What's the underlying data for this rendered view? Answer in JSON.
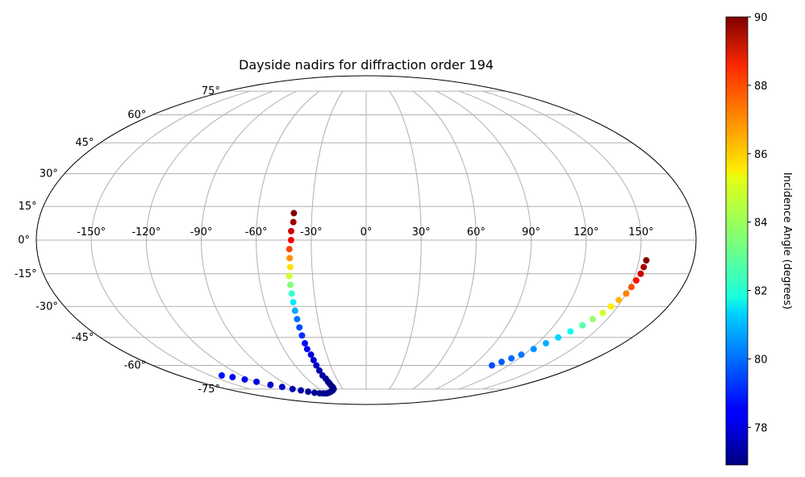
{
  "chart_data": {
    "type": "scatter",
    "projection": "mollweide",
    "title": "Dayside nadirs for diffraction order 194",
    "grid": true,
    "x_tick_labels": [
      "-150°",
      "-120°",
      "-90°",
      "-60°",
      "-30°",
      "0°",
      "30°",
      "60°",
      "90°",
      "120°",
      "150°"
    ],
    "x_ticks": [
      -150,
      -120,
      -90,
      -60,
      -30,
      0,
      30,
      60,
      90,
      120,
      150
    ],
    "y_tick_labels": [
      "-75°",
      "-60°",
      "-45°",
      "-30°",
      "-15°",
      "0°",
      "15°",
      "30°",
      "45°",
      "60°",
      "75°"
    ],
    "y_ticks": [
      -75,
      -60,
      -45,
      -30,
      -15,
      0,
      15,
      30,
      45,
      60,
      75
    ],
    "colorbar": {
      "label": "Incidence Angle (degrees)",
      "cmap": "jet",
      "range": [
        76.9,
        90
      ],
      "tick_values": [
        78,
        80,
        82,
        84,
        86,
        88,
        90
      ],
      "tick_labels": [
        "78",
        "80",
        "82",
        "84",
        "86",
        "88",
        "90"
      ]
    },
    "series": [
      {
        "lon": [
          -40,
          -40,
          -41,
          -41,
          -42,
          -42,
          -42,
          -43,
          -43,
          -43,
          -43,
          -43,
          -43,
          -43,
          -43,
          -43,
          -43,
          -42,
          -42,
          -42,
          -42,
          -42,
          -41,
          -41,
          -41,
          -41,
          -41,
          -41,
          -42,
          -45,
          -50,
          -55,
          -60,
          -65,
          -70,
          -76,
          -82,
          -88,
          -95,
          -102,
          -110,
          -118,
          -125,
          -132,
          -139
        ],
        "lat": [
          12,
          8,
          4,
          0,
          -4,
          -8,
          -12,
          -16,
          -20,
          -24,
          -28,
          -32,
          -36,
          -40,
          -44,
          -48,
          -51,
          -54,
          -57,
          -60,
          -63,
          -66,
          -68,
          -70,
          -71,
          -72,
          -73,
          -74,
          -75,
          -76,
          -77,
          -77.8,
          -78.3,
          -78.3,
          -78.2,
          -77.8,
          -77,
          -76,
          -75,
          -73.5,
          -72,
          -70,
          -68.5,
          -67,
          -66
        ],
        "incidence": [
          90,
          89.5,
          89,
          88.5,
          87.5,
          86.5,
          85.5,
          84.5,
          83.5,
          82.5,
          81.6,
          80.7,
          80,
          79.5,
          79.1,
          78.7,
          78.4,
          78.1,
          77.9,
          77.7,
          77.5,
          77.3,
          77.2,
          77.1,
          77,
          77,
          77,
          77,
          77,
          77,
          77,
          77,
          77,
          77.1,
          77.1,
          77.2,
          77.3,
          77.4,
          77.5,
          77.7,
          77.9,
          78.1,
          78.3,
          78.5,
          78.7
        ]
      },
      {
        "lon": [
          154,
          153.5,
          153,
          152,
          151,
          150,
          148,
          146,
          144,
          141,
          138,
          134,
          130,
          126,
          122,
          118,
          114,
          110,
          106
        ],
        "lat": [
          -9,
          -12,
          -15,
          -18,
          -21,
          -24,
          -27,
          -30,
          -33,
          -36,
          -39,
          -42,
          -45,
          -48,
          -51,
          -54,
          -56,
          -58,
          -60
        ],
        "incidence": [
          90,
          89.5,
          89,
          88.2,
          87.4,
          86.7,
          86,
          85.3,
          84.5,
          83.7,
          82.9,
          82,
          81.3,
          80.8,
          80.4,
          80.1,
          79.9,
          79.7,
          79.5
        ]
      }
    ]
  }
}
